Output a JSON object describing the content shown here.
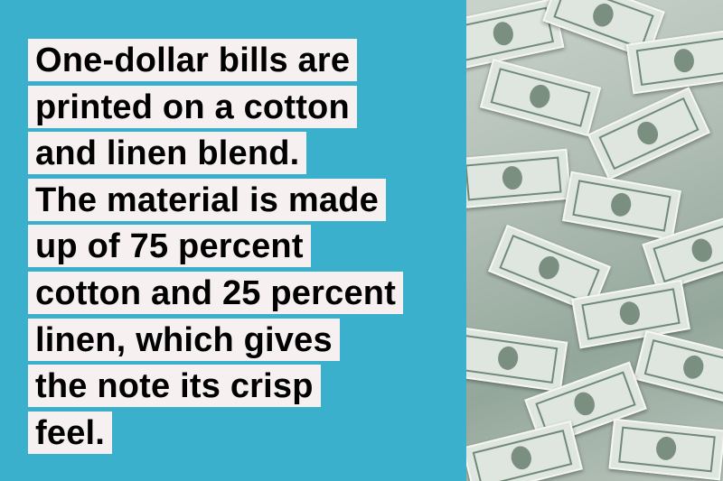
{
  "text_lines": [
    "One-dollar bills are",
    "printed on a cotton",
    "and linen blend.",
    "The material is made",
    "up of 75 percent",
    "cotton and 25 percent",
    "linen, which gives",
    "the note its crisp",
    "feel."
  ],
  "colors": {
    "background": "#3ab0cc",
    "highlight": "#f6f0f1",
    "text": "#000000"
  },
  "image": {
    "subject": "pile of one-dollar bills"
  }
}
